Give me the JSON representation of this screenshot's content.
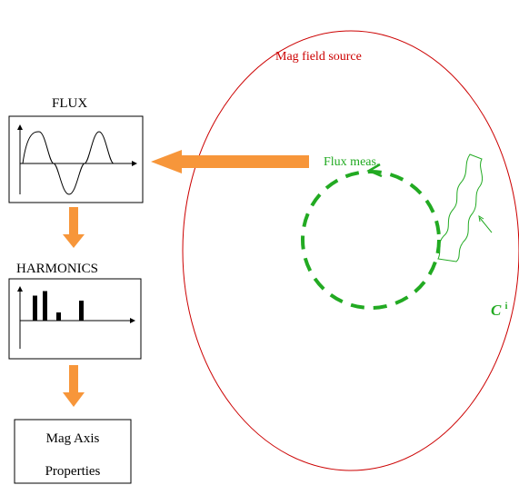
{
  "labels": {
    "flux_title": "FLUX",
    "harmonics_title": "HARMONICS",
    "mag_field_source": "Mag field source",
    "flux_meas": "Flux meas.",
    "c_symbol": "C",
    "c_superscript": "i",
    "mag_axis_line1": "Mag Axis",
    "mag_axis_line2": "Properties"
  },
  "harmonics": {
    "relative_heights": [
      0.55,
      0.65,
      0.18,
      0.44
    ],
    "colors": {
      "bars": "#000000"
    }
  },
  "colors": {
    "source_ellipse": "#cc0000",
    "coil": "#22aa22",
    "arrow": "#f7963a",
    "text_red": "#cc0000",
    "text_green": "#22aa22"
  }
}
